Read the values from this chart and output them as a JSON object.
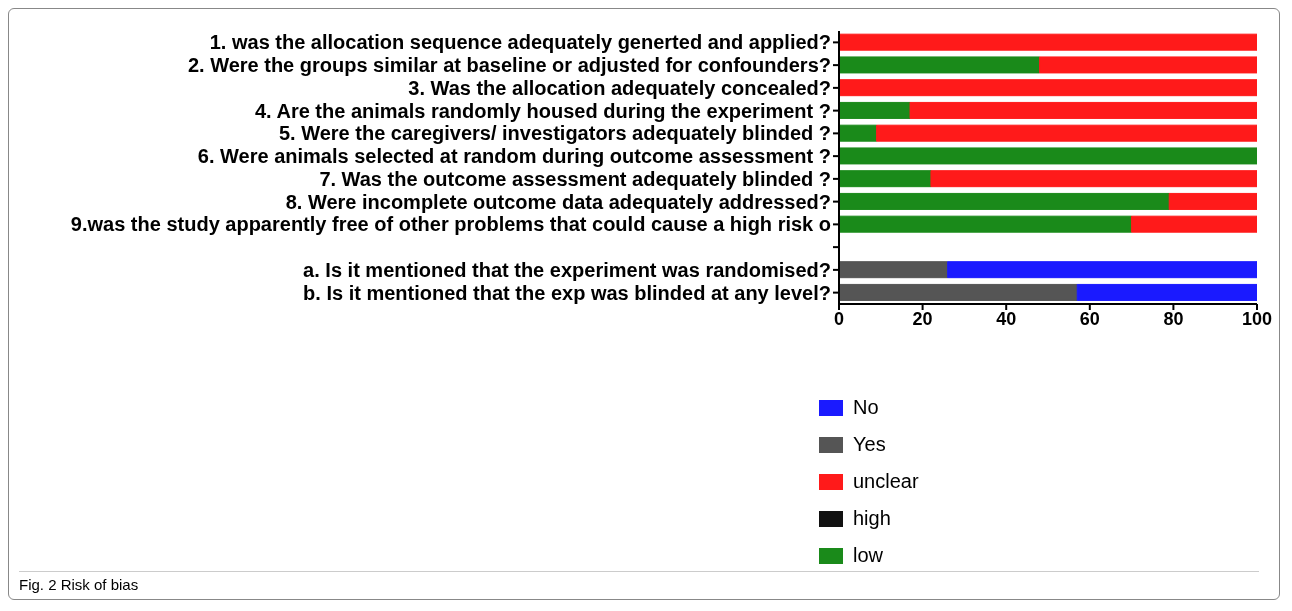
{
  "chart_data": {
    "type": "bar",
    "orientation": "horizontal",
    "stacked": true,
    "categories": [
      "1. was the allocation sequence adequately generted and applied?",
      "2. Were the groups similar at baseline or adjusted  for confounders?",
      "3. Was the allocation adequately concealed?",
      "4. Are the animals randomly housed during the experiment ?",
      "5. Were the caregivers/ investigators adequately blinded ?",
      "6. Were animals selected at random during outcome assessment ?",
      "7. Was the outcome assessment adequately blinded ?",
      "8. Were incomplete outcome data adequately addressed?",
      "9.was the study apparently free of other problems that could cause a high risk o",
      null,
      "a. Is it mentioned that the experiment was randomised?",
      "b. Is it mentioned that the exp was blinded at any level?"
    ],
    "series": [
      {
        "name": "low",
        "color": "#1a8a1a",
        "values": [
          0,
          48,
          0,
          17,
          9,
          100,
          22,
          79,
          70,
          null,
          null,
          null
        ]
      },
      {
        "name": "high",
        "color": "#111111",
        "values": [
          0,
          0,
          0,
          0,
          0,
          0,
          0,
          0,
          0,
          null,
          null,
          null
        ]
      },
      {
        "name": "unclear",
        "color": "#ff1a1a",
        "values": [
          100,
          52,
          100,
          83,
          91,
          0,
          78,
          21,
          30,
          null,
          null,
          null
        ]
      },
      {
        "name": "Yes",
        "color": "#555555",
        "values": [
          null,
          null,
          null,
          null,
          null,
          null,
          null,
          null,
          null,
          null,
          26,
          57
        ]
      },
      {
        "name": "No",
        "color": "#1a1aff",
        "values": [
          null,
          null,
          null,
          null,
          null,
          null,
          null,
          null,
          null,
          null,
          74,
          43
        ]
      }
    ],
    "xlim": [
      0,
      100
    ],
    "xticks": [
      0,
      20,
      40,
      60,
      80,
      100
    ],
    "legend": "bottom",
    "annotations": [
      "Fig. 2 Risk of bias"
    ]
  }
}
